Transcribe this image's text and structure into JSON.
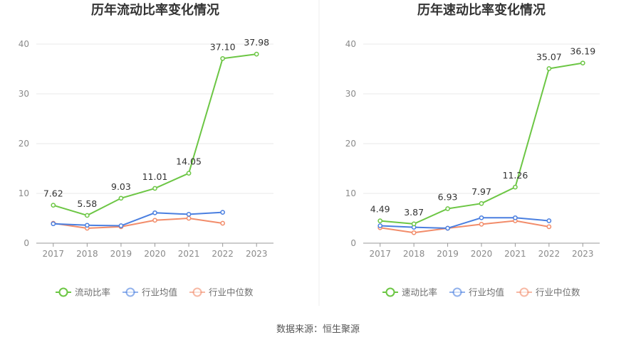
{
  "source": "数据来源：恒生聚源",
  "chart_data": [
    {
      "type": "line",
      "title": "历年流动比率变化情况",
      "categories": [
        "2017",
        "2018",
        "2019",
        "2020",
        "2021",
        "2022",
        "2023"
      ],
      "ylim": [
        0,
        40
      ],
      "yticks": [
        "0",
        "10",
        "20",
        "30",
        "40"
      ],
      "grid": true,
      "legend_position": "bottom",
      "series": [
        {
          "name": "流动比率",
          "color": "#6cc644",
          "values": [
            7.62,
            5.58,
            9.03,
            11.01,
            14.05,
            37.1,
            37.98
          ],
          "labels": [
            "7.62",
            "5.58",
            "9.03",
            "11.01",
            "14.05",
            "37.10",
            "37.98"
          ]
        },
        {
          "name": "行业均值",
          "color": "#4a7fe0",
          "values": [
            3.9,
            3.6,
            3.5,
            6.1,
            5.8,
            6.2,
            null
          ]
        },
        {
          "name": "行业中位数",
          "color": "#f28c6a",
          "values": [
            4.0,
            3.0,
            3.3,
            4.6,
            5.0,
            4.0,
            null
          ]
        }
      ]
    },
    {
      "type": "line",
      "title": "历年速动比率变化情况",
      "categories": [
        "2017",
        "2018",
        "2019",
        "2020",
        "2021",
        "2022",
        "2023"
      ],
      "ylim": [
        0,
        40
      ],
      "yticks": [
        "0",
        "10",
        "20",
        "30",
        "40"
      ],
      "grid": true,
      "legend_position": "bottom",
      "series": [
        {
          "name": "速动比率",
          "color": "#6cc644",
          "values": [
            4.49,
            3.87,
            6.93,
            7.97,
            11.26,
            35.07,
            36.19
          ],
          "labels": [
            "4.49",
            "3.87",
            "6.93",
            "7.97",
            "11.26",
            "35.07",
            "36.19"
          ]
        },
        {
          "name": "行业均值",
          "color": "#4a7fe0",
          "values": [
            3.5,
            3.2,
            3.0,
            5.1,
            5.1,
            4.5,
            null
          ]
        },
        {
          "name": "行业中位数",
          "color": "#f28c6a",
          "values": [
            3.1,
            2.1,
            3.0,
            3.8,
            4.5,
            3.3,
            null
          ]
        }
      ]
    }
  ]
}
